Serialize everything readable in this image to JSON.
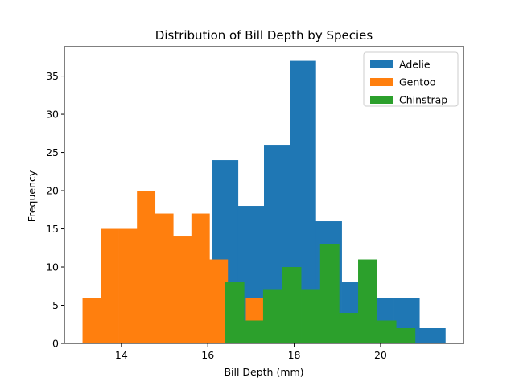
{
  "chart_data": {
    "type": "histogram",
    "title": "Distribution of Bill Depth by Species",
    "xlabel": "Bill Depth (mm)",
    "ylabel": "Frequency",
    "xlim": [
      12.68,
      21.92
    ],
    "ylim": [
      0,
      38.85
    ],
    "xticks": [
      14,
      16,
      18,
      20
    ],
    "yticks": [
      0,
      5,
      10,
      15,
      20,
      25,
      30,
      35
    ],
    "legend_position": "upper right",
    "series": [
      {
        "name": "Adelie",
        "color": "#1f77b4",
        "bin_edges": [
          15.5,
          16.1,
          16.7,
          17.3,
          17.9,
          18.5,
          19.1,
          19.7,
          20.3,
          20.9,
          21.5
        ],
        "counts": [
          5,
          24,
          18,
          26,
          37,
          16,
          8,
          6,
          6,
          2
        ]
      },
      {
        "name": "Gentoo",
        "color": "#ff7f0e",
        "bin_edges": [
          13.1,
          13.52,
          13.94,
          14.36,
          14.78,
          15.2,
          15.62,
          16.04,
          16.46,
          16.88,
          17.3
        ],
        "counts": [
          6,
          15,
          15,
          20,
          17,
          14,
          17,
          11,
          0,
          6
        ]
      },
      {
        "name": "Chinstrap",
        "color": "#2ca02c",
        "bin_edges": [
          16.4,
          16.84,
          17.28,
          17.72,
          18.16,
          18.6,
          19.04,
          19.48,
          19.92,
          20.36,
          20.8
        ],
        "counts": [
          8,
          3,
          7,
          10,
          7,
          13,
          4,
          11,
          3,
          2
        ]
      }
    ]
  }
}
